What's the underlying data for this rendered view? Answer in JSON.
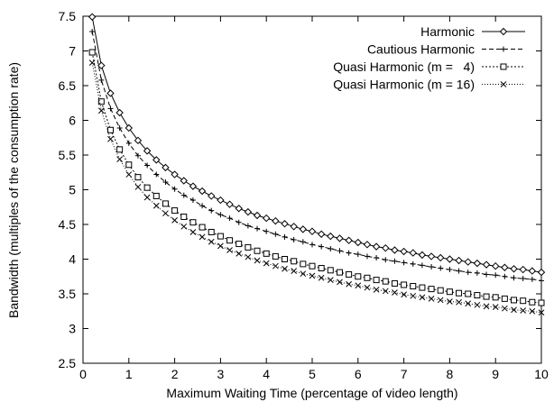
{
  "chart_data": {
    "type": "line",
    "title": "",
    "xlabel": "Maximum Waiting Time (percentage of video length)",
    "ylabel": "Bandwidth (multiples of the consumption rate)",
    "xlim": [
      0,
      10
    ],
    "ylim": [
      2.5,
      7.5
    ],
    "xticks": [
      "0",
      "1",
      "2",
      "3",
      "4",
      "5",
      "6",
      "7",
      "8",
      "9",
      "10"
    ],
    "yticks": [
      "2.5",
      "3",
      "3.5",
      "4",
      "4.5",
      "5",
      "5.5",
      "6",
      "6.5",
      "7",
      "7.5"
    ],
    "grid": false,
    "legend_position": "top-right",
    "series": [
      {
        "name": "Harmonic",
        "marker": "diamond",
        "dash": "solid",
        "x": [
          0.2,
          0.4,
          0.6,
          0.8,
          1.0,
          1.2,
          1.4,
          1.6,
          1.8,
          2.0,
          2.2,
          2.4,
          2.6,
          2.8,
          3.0,
          3.2,
          3.4,
          3.6,
          3.8,
          4.0,
          4.2,
          4.4,
          4.6,
          4.8,
          5.0,
          5.2,
          5.4,
          5.6,
          5.8,
          6.0,
          6.2,
          6.4,
          6.6,
          6.8,
          7.0,
          7.2,
          7.4,
          7.6,
          7.8,
          8.0,
          8.2,
          8.4,
          8.6,
          8.8,
          9.0,
          9.2,
          9.4,
          9.6,
          9.8,
          10.0
        ],
        "y": [
          7.49,
          6.79,
          6.39,
          6.11,
          5.89,
          5.71,
          5.56,
          5.43,
          5.32,
          5.22,
          5.13,
          5.05,
          4.98,
          4.91,
          4.85,
          4.79,
          4.73,
          4.68,
          4.63,
          4.59,
          4.55,
          4.51,
          4.47,
          4.43,
          4.4,
          4.36,
          4.33,
          4.3,
          4.27,
          4.24,
          4.21,
          4.18,
          4.16,
          4.13,
          4.11,
          4.09,
          4.06,
          4.04,
          4.02,
          4.0,
          3.98,
          3.96,
          3.94,
          3.92,
          3.9,
          3.88,
          3.86,
          3.85,
          3.83,
          3.81
        ]
      },
      {
        "name": "Cautious Harmonic",
        "marker": "plus",
        "dash": "dashed",
        "x": [
          0.2,
          0.4,
          0.6,
          0.8,
          1.0,
          1.2,
          1.4,
          1.6,
          1.8,
          2.0,
          2.2,
          2.4,
          2.6,
          2.8,
          3.0,
          3.2,
          3.4,
          3.6,
          3.8,
          4.0,
          4.2,
          4.4,
          4.6,
          4.8,
          5.0,
          5.2,
          5.4,
          5.6,
          5.8,
          6.0,
          6.2,
          6.4,
          6.6,
          6.8,
          7.0,
          7.2,
          7.4,
          7.6,
          7.8,
          8.0,
          8.2,
          8.4,
          8.6,
          8.8,
          9.0,
          9.2,
          9.4,
          9.6,
          9.8,
          10.0
        ],
        "y": [
          7.28,
          6.58,
          6.17,
          5.89,
          5.67,
          5.49,
          5.35,
          5.22,
          5.11,
          5.01,
          4.92,
          4.85,
          4.77,
          4.7,
          4.64,
          4.59,
          4.53,
          4.48,
          4.44,
          4.4,
          4.36,
          4.32,
          4.28,
          4.25,
          4.21,
          4.18,
          4.15,
          4.12,
          4.09,
          4.07,
          4.04,
          4.02,
          3.99,
          3.97,
          3.95,
          3.93,
          3.91,
          3.89,
          3.87,
          3.85,
          3.83,
          3.81,
          3.8,
          3.78,
          3.77,
          3.75,
          3.73,
          3.72,
          3.71,
          3.69
        ]
      },
      {
        "name": "Quasi Harmonic (m =   4)",
        "marker": "square",
        "dash": "dotted",
        "x": [
          0.2,
          0.4,
          0.6,
          0.8,
          1.0,
          1.2,
          1.4,
          1.6,
          1.8,
          2.0,
          2.2,
          2.4,
          2.6,
          2.8,
          3.0,
          3.2,
          3.4,
          3.6,
          3.8,
          4.0,
          4.2,
          4.4,
          4.6,
          4.8,
          5.0,
          5.2,
          5.4,
          5.6,
          5.8,
          6.0,
          6.2,
          6.4,
          6.6,
          6.8,
          7.0,
          7.2,
          7.4,
          7.6,
          7.8,
          8.0,
          8.2,
          8.4,
          8.6,
          8.8,
          9.0,
          9.2,
          9.4,
          9.6,
          9.8,
          10.0
        ],
        "y": [
          6.98,
          6.27,
          5.86,
          5.58,
          5.36,
          5.18,
          5.03,
          4.91,
          4.8,
          4.7,
          4.61,
          4.53,
          4.46,
          4.39,
          4.33,
          4.27,
          4.22,
          4.17,
          4.12,
          4.08,
          4.04,
          4.0,
          3.97,
          3.93,
          3.9,
          3.87,
          3.84,
          3.81,
          3.78,
          3.75,
          3.73,
          3.7,
          3.68,
          3.65,
          3.63,
          3.61,
          3.59,
          3.57,
          3.55,
          3.53,
          3.51,
          3.5,
          3.48,
          3.46,
          3.45,
          3.43,
          3.41,
          3.4,
          3.38,
          3.37
        ]
      },
      {
        "name": "Quasi Harmonic (m = 16)",
        "marker": "cross",
        "dash": "dotted-fine",
        "x": [
          0.2,
          0.4,
          0.6,
          0.8,
          1.0,
          1.2,
          1.4,
          1.6,
          1.8,
          2.0,
          2.2,
          2.4,
          2.6,
          2.8,
          3.0,
          3.2,
          3.4,
          3.6,
          3.8,
          4.0,
          4.2,
          4.4,
          4.6,
          4.8,
          5.0,
          5.2,
          5.4,
          5.6,
          5.8,
          6.0,
          6.2,
          6.4,
          6.6,
          6.8,
          7.0,
          7.2,
          7.4,
          7.6,
          7.8,
          8.0,
          8.2,
          8.4,
          8.6,
          8.8,
          9.0,
          9.2,
          9.4,
          9.6,
          9.8,
          10.0
        ],
        "y": [
          6.83,
          6.14,
          5.73,
          5.44,
          5.22,
          5.04,
          4.89,
          4.77,
          4.66,
          4.56,
          4.47,
          4.39,
          4.32,
          4.25,
          4.19,
          4.13,
          4.08,
          4.03,
          3.98,
          3.94,
          3.9,
          3.86,
          3.83,
          3.79,
          3.76,
          3.73,
          3.7,
          3.67,
          3.64,
          3.62,
          3.59,
          3.56,
          3.54,
          3.52,
          3.49,
          3.47,
          3.45,
          3.43,
          3.41,
          3.39,
          3.38,
          3.36,
          3.34,
          3.32,
          3.31,
          3.29,
          3.27,
          3.26,
          3.25,
          3.23
        ]
      }
    ]
  }
}
